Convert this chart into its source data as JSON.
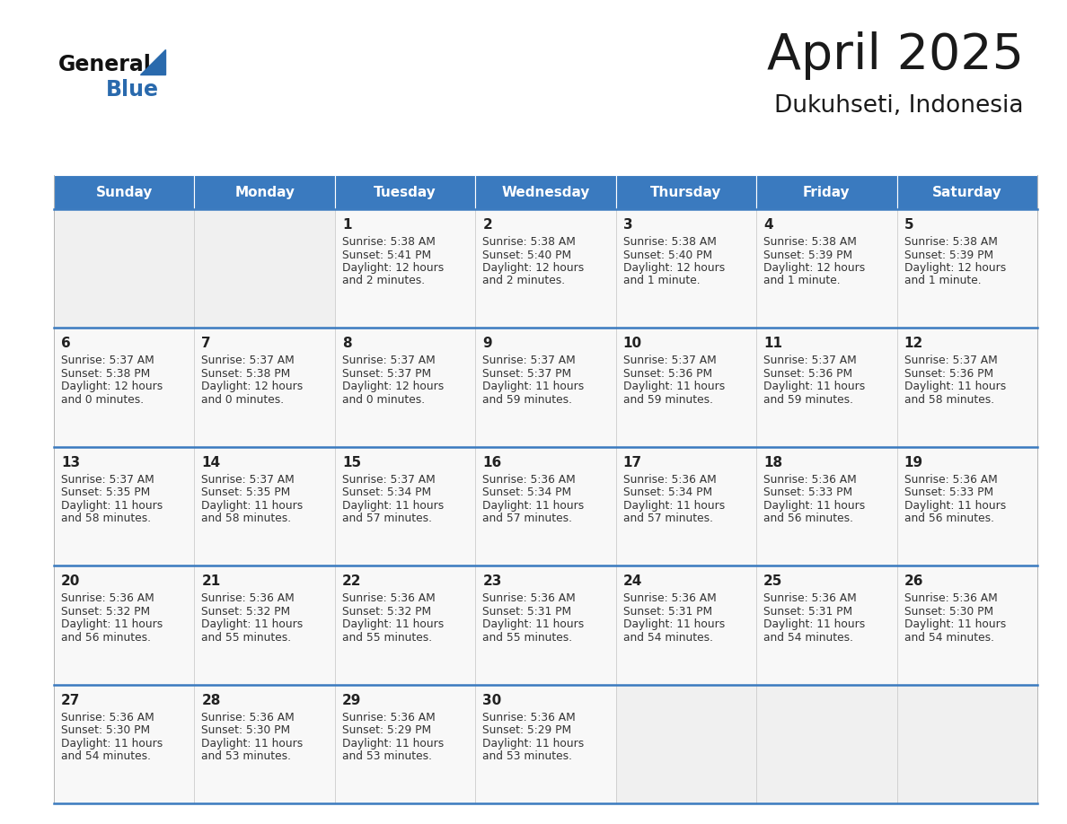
{
  "title": "April 2025",
  "subtitle": "Dukuhseti, Indonesia",
  "header_color": "#3a7abf",
  "header_text_color": "#ffffff",
  "grid_line_color": "#3a7abf",
  "background_color": "#ffffff",
  "days_of_week": [
    "Sunday",
    "Monday",
    "Tuesday",
    "Wednesday",
    "Thursday",
    "Friday",
    "Saturday"
  ],
  "weeks": [
    [
      {
        "day": null
      },
      {
        "day": null
      },
      {
        "day": "1",
        "sunrise": "5:38 AM",
        "sunset": "5:41 PM",
        "daylight": "12 hours",
        "daylight2": "and 2 minutes."
      },
      {
        "day": "2",
        "sunrise": "5:38 AM",
        "sunset": "5:40 PM",
        "daylight": "12 hours",
        "daylight2": "and 2 minutes."
      },
      {
        "day": "3",
        "sunrise": "5:38 AM",
        "sunset": "5:40 PM",
        "daylight": "12 hours",
        "daylight2": "and 1 minute."
      },
      {
        "day": "4",
        "sunrise": "5:38 AM",
        "sunset": "5:39 PM",
        "daylight": "12 hours",
        "daylight2": "and 1 minute."
      },
      {
        "day": "5",
        "sunrise": "5:38 AM",
        "sunset": "5:39 PM",
        "daylight": "12 hours",
        "daylight2": "and 1 minute."
      }
    ],
    [
      {
        "day": "6",
        "sunrise": "5:37 AM",
        "sunset": "5:38 PM",
        "daylight": "12 hours",
        "daylight2": "and 0 minutes."
      },
      {
        "day": "7",
        "sunrise": "5:37 AM",
        "sunset": "5:38 PM",
        "daylight": "12 hours",
        "daylight2": "and 0 minutes."
      },
      {
        "day": "8",
        "sunrise": "5:37 AM",
        "sunset": "5:37 PM",
        "daylight": "12 hours",
        "daylight2": "and 0 minutes."
      },
      {
        "day": "9",
        "sunrise": "5:37 AM",
        "sunset": "5:37 PM",
        "daylight": "11 hours",
        "daylight2": "and 59 minutes."
      },
      {
        "day": "10",
        "sunrise": "5:37 AM",
        "sunset": "5:36 PM",
        "daylight": "11 hours",
        "daylight2": "and 59 minutes."
      },
      {
        "day": "11",
        "sunrise": "5:37 AM",
        "sunset": "5:36 PM",
        "daylight": "11 hours",
        "daylight2": "and 59 minutes."
      },
      {
        "day": "12",
        "sunrise": "5:37 AM",
        "sunset": "5:36 PM",
        "daylight": "11 hours",
        "daylight2": "and 58 minutes."
      }
    ],
    [
      {
        "day": "13",
        "sunrise": "5:37 AM",
        "sunset": "5:35 PM",
        "daylight": "11 hours",
        "daylight2": "and 58 minutes."
      },
      {
        "day": "14",
        "sunrise": "5:37 AM",
        "sunset": "5:35 PM",
        "daylight": "11 hours",
        "daylight2": "and 58 minutes."
      },
      {
        "day": "15",
        "sunrise": "5:37 AM",
        "sunset": "5:34 PM",
        "daylight": "11 hours",
        "daylight2": "and 57 minutes."
      },
      {
        "day": "16",
        "sunrise": "5:36 AM",
        "sunset": "5:34 PM",
        "daylight": "11 hours",
        "daylight2": "and 57 minutes."
      },
      {
        "day": "17",
        "sunrise": "5:36 AM",
        "sunset": "5:34 PM",
        "daylight": "11 hours",
        "daylight2": "and 57 minutes."
      },
      {
        "day": "18",
        "sunrise": "5:36 AM",
        "sunset": "5:33 PM",
        "daylight": "11 hours",
        "daylight2": "and 56 minutes."
      },
      {
        "day": "19",
        "sunrise": "5:36 AM",
        "sunset": "5:33 PM",
        "daylight": "11 hours",
        "daylight2": "and 56 minutes."
      }
    ],
    [
      {
        "day": "20",
        "sunrise": "5:36 AM",
        "sunset": "5:32 PM",
        "daylight": "11 hours",
        "daylight2": "and 56 minutes."
      },
      {
        "day": "21",
        "sunrise": "5:36 AM",
        "sunset": "5:32 PM",
        "daylight": "11 hours",
        "daylight2": "and 55 minutes."
      },
      {
        "day": "22",
        "sunrise": "5:36 AM",
        "sunset": "5:32 PM",
        "daylight": "11 hours",
        "daylight2": "and 55 minutes."
      },
      {
        "day": "23",
        "sunrise": "5:36 AM",
        "sunset": "5:31 PM",
        "daylight": "11 hours",
        "daylight2": "and 55 minutes."
      },
      {
        "day": "24",
        "sunrise": "5:36 AM",
        "sunset": "5:31 PM",
        "daylight": "11 hours",
        "daylight2": "and 54 minutes."
      },
      {
        "day": "25",
        "sunrise": "5:36 AM",
        "sunset": "5:31 PM",
        "daylight": "11 hours",
        "daylight2": "and 54 minutes."
      },
      {
        "day": "26",
        "sunrise": "5:36 AM",
        "sunset": "5:30 PM",
        "daylight": "11 hours",
        "daylight2": "and 54 minutes."
      }
    ],
    [
      {
        "day": "27",
        "sunrise": "5:36 AM",
        "sunset": "5:30 PM",
        "daylight": "11 hours",
        "daylight2": "and 54 minutes."
      },
      {
        "day": "28",
        "sunrise": "5:36 AM",
        "sunset": "5:30 PM",
        "daylight": "11 hours",
        "daylight2": "and 53 minutes."
      },
      {
        "day": "29",
        "sunrise": "5:36 AM",
        "sunset": "5:29 PM",
        "daylight": "11 hours",
        "daylight2": "and 53 minutes."
      },
      {
        "day": "30",
        "sunrise": "5:36 AM",
        "sunset": "5:29 PM",
        "daylight": "11 hours",
        "daylight2": "and 53 minutes."
      },
      {
        "day": null
      },
      {
        "day": null
      },
      {
        "day": null
      }
    ]
  ]
}
